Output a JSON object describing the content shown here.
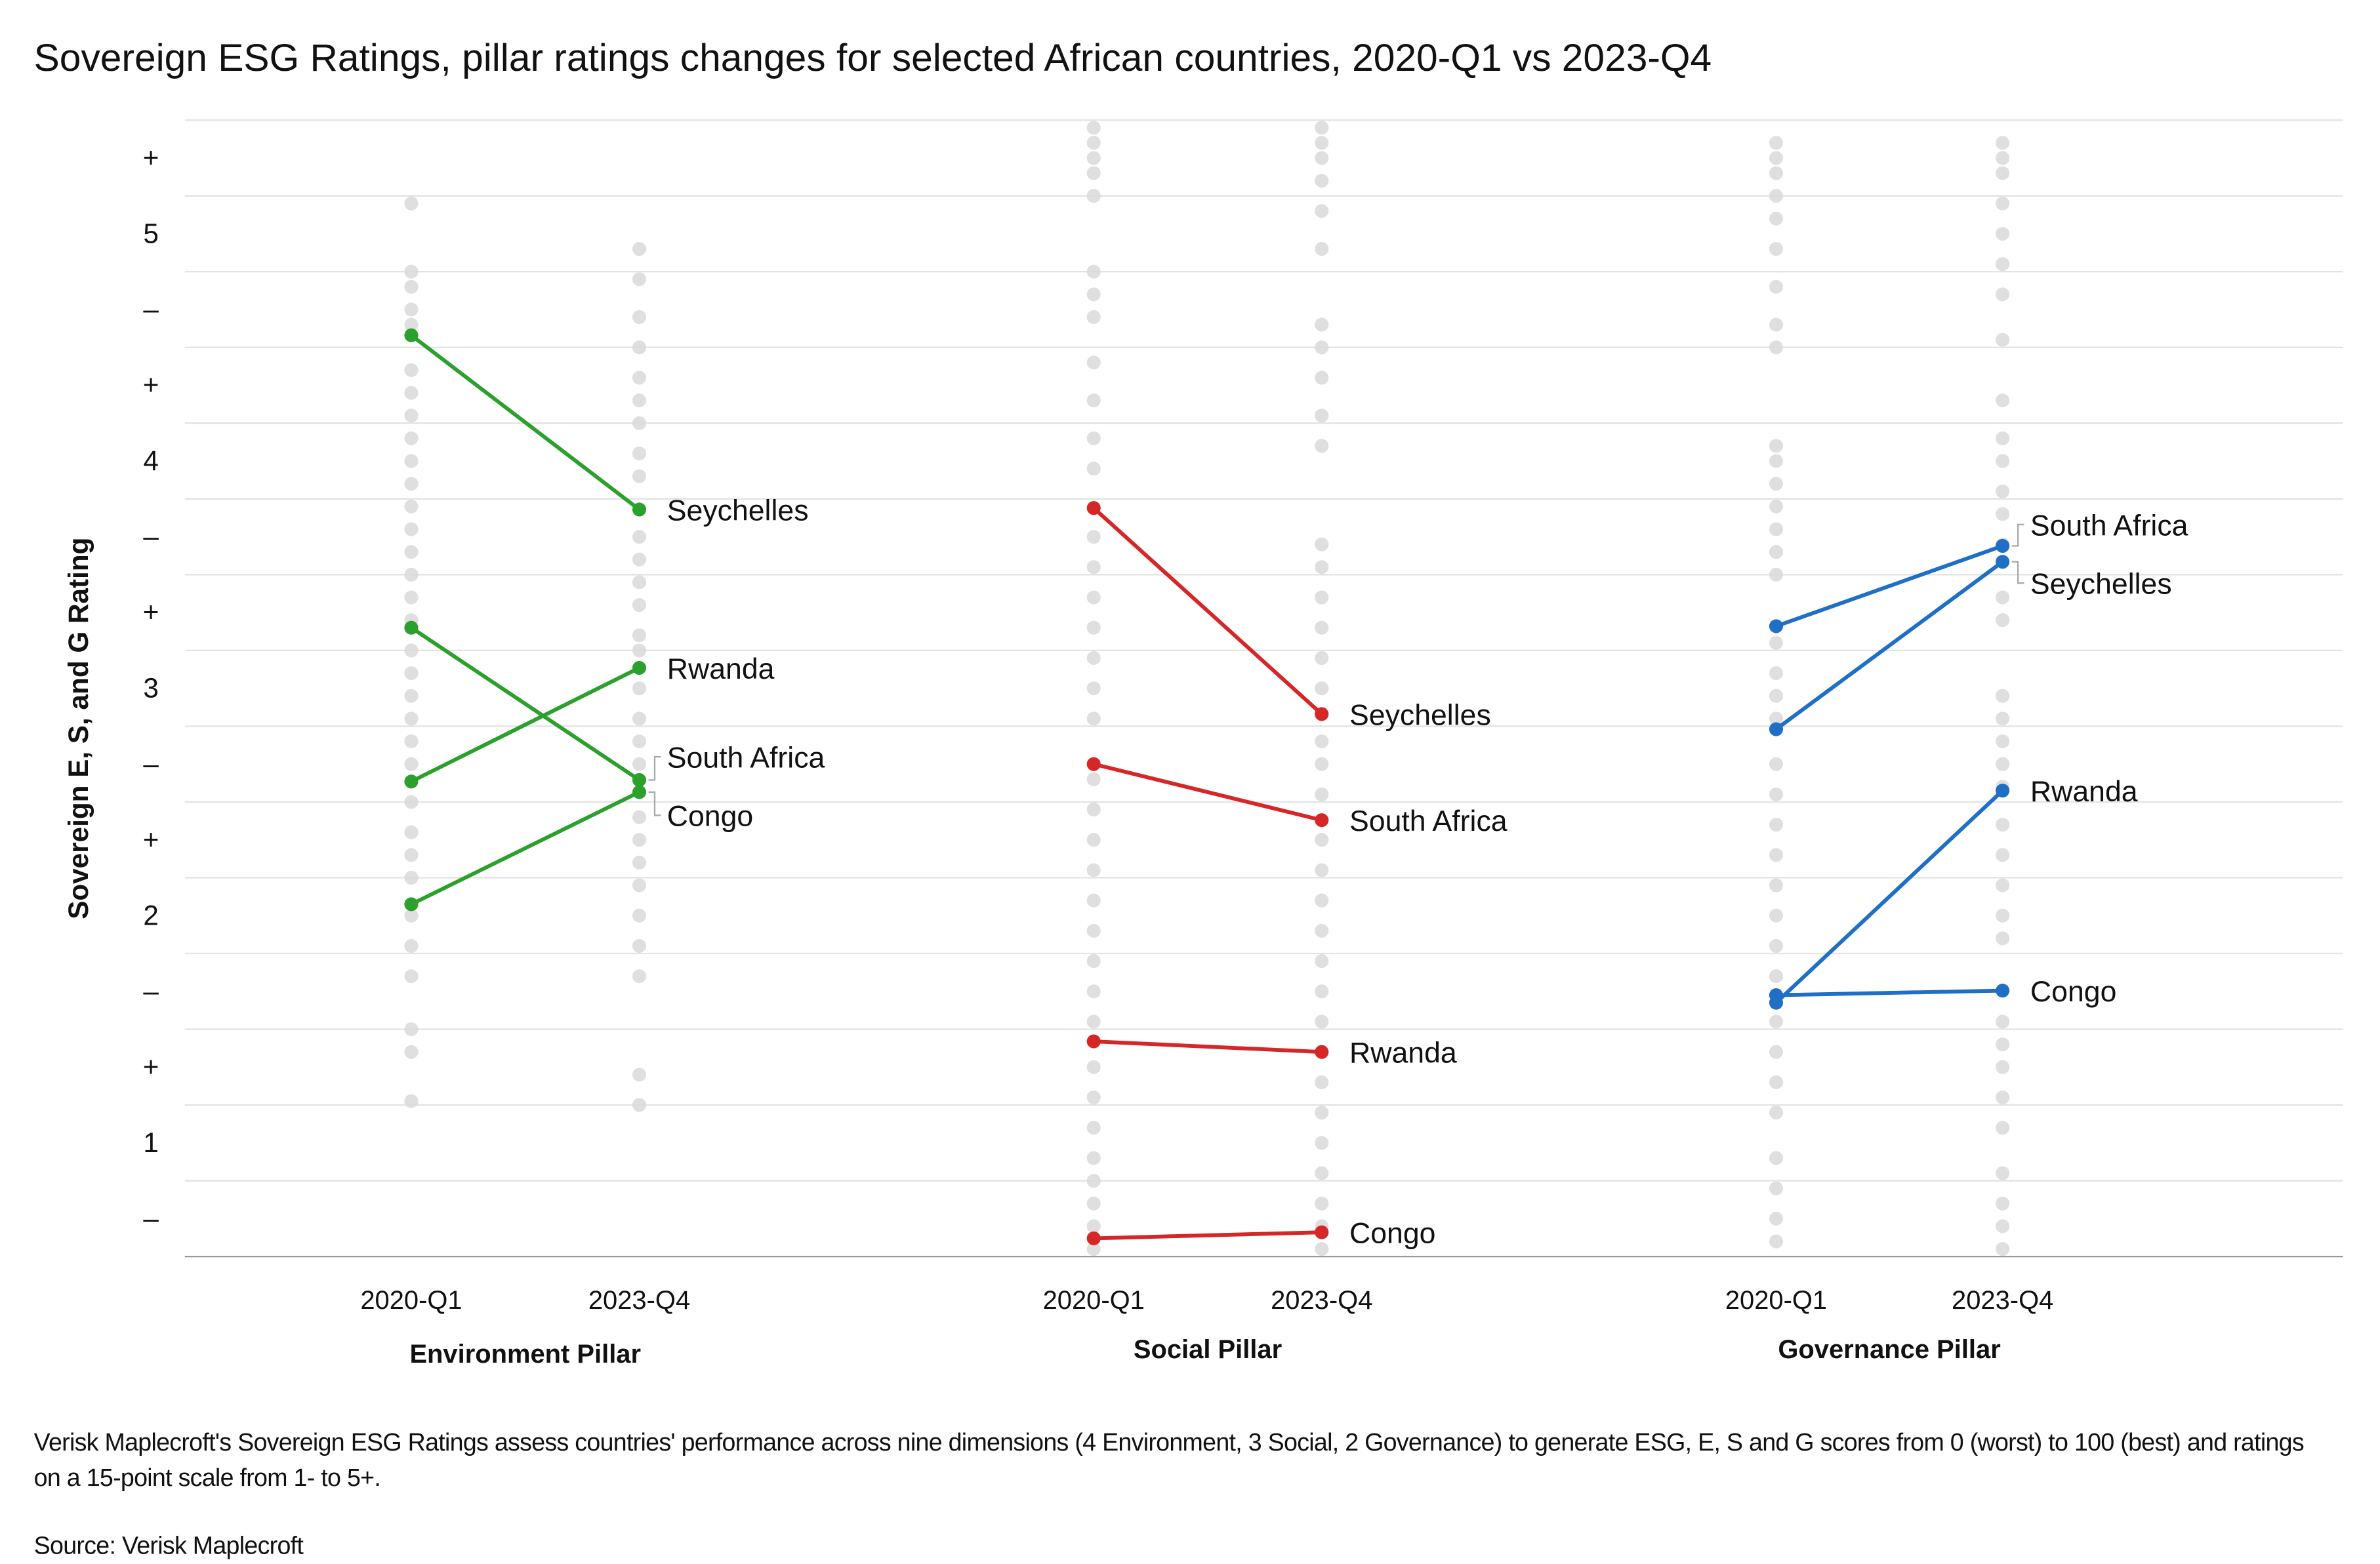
{
  "chart_data": {
    "type": "slope",
    "title": "Sovereign ESG Ratings, pillar ratings changes for selected African countries, 2020-Q1 vs 2023-Q4",
    "y_label": "Sovereign E, S, and G Rating",
    "ylim": [
      0.5,
      15.5
    ],
    "yticks": [
      {
        "value": 15,
        "label": "+"
      },
      {
        "value": 14,
        "label": "5"
      },
      {
        "value": 13,
        "label": "–"
      },
      {
        "value": 12,
        "label": "+"
      },
      {
        "value": 11,
        "label": "4"
      },
      {
        "value": 10,
        "label": "–"
      },
      {
        "value": 9,
        "label": "+"
      },
      {
        "value": 8,
        "label": "3"
      },
      {
        "value": 7,
        "label": "–"
      },
      {
        "value": 6,
        "label": "+"
      },
      {
        "value": 5,
        "label": "2"
      },
      {
        "value": 4,
        "label": "–"
      },
      {
        "value": 3,
        "label": "+"
      },
      {
        "value": 2,
        "label": "1"
      },
      {
        "value": 1,
        "label": "–"
      }
    ],
    "grid": true,
    "grid_lines": [
      0.5,
      1.5,
      2.5,
      3.5,
      4.5,
      5.5,
      6.5,
      7.5,
      8.5,
      9.5,
      10.5,
      11.5,
      12.5,
      13.5,
      14.5,
      15.5
    ],
    "background_color": "#d9d9d9",
    "panels": [
      {
        "title": "Environment Pillar",
        "categories": [
          "2020-Q1",
          "2023-Q4"
        ],
        "series": [
          {
            "name": "Seychelles",
            "color": "#2ca02c",
            "values": [
              12.66,
              10.36
            ]
          },
          {
            "name": "Rwanda",
            "color": "#2ca02c",
            "values": [
              6.77,
              8.27
            ]
          },
          {
            "name": "South Africa",
            "color": "#2ca02c",
            "values": [
              8.8,
              6.79
            ]
          },
          {
            "name": "Congo",
            "color": "#2ca02c",
            "values": [
              5.15,
              6.63
            ]
          }
        ],
        "background": [
          [
            14.4,
            13.5,
            13.3,
            13.0,
            12.8,
            12.2,
            11.9,
            11.6,
            11.3,
            11.0,
            10.7,
            10.4,
            10.1,
            9.8,
            9.5,
            9.2,
            8.9,
            8.5,
            8.2,
            7.9,
            7.6,
            7.3,
            7.0,
            6.5,
            6.1,
            5.8,
            5.5,
            5.0,
            4.6,
            4.2,
            3.5,
            3.2,
            2.55
          ],
          [
            13.8,
            13.4,
            12.9,
            12.5,
            12.1,
            11.8,
            11.5,
            11.1,
            10.8,
            10.0,
            9.7,
            9.4,
            9.1,
            8.7,
            8.5,
            8.0,
            7.6,
            7.3,
            7.0,
            6.3,
            6.0,
            5.7,
            5.4,
            5.0,
            4.6,
            4.2,
            2.9,
            2.5
          ]
        ]
      },
      {
        "title": "Social Pillar",
        "categories": [
          "2020-Q1",
          "2023-Q4"
        ],
        "series": [
          {
            "name": "Seychelles",
            "color": "#d62728",
            "values": [
              10.38,
              7.66
            ]
          },
          {
            "name": "South Africa",
            "color": "#d62728",
            "values": [
              7.0,
              6.26
            ]
          },
          {
            "name": "Rwanda",
            "color": "#d62728",
            "values": [
              3.34,
              3.2
            ]
          },
          {
            "name": "Congo",
            "color": "#d62728",
            "values": [
              0.74,
              0.82
            ]
          }
        ],
        "background": [
          [
            15.4,
            15.2,
            15.0,
            14.8,
            14.5,
            13.5,
            13.2,
            12.9,
            12.3,
            11.8,
            11.3,
            10.9,
            10.0,
            9.6,
            9.2,
            8.8,
            8.4,
            8.0,
            7.6,
            6.8,
            6.4,
            6.0,
            5.6,
            5.2,
            4.8,
            4.4,
            4.0,
            3.6,
            3.0,
            2.6,
            2.2,
            1.8,
            1.5,
            1.2,
            0.9,
            0.6
          ],
          [
            15.4,
            15.2,
            15.0,
            14.7,
            14.3,
            13.8,
            12.8,
            12.5,
            12.1,
            11.6,
            11.2,
            9.9,
            9.6,
            9.2,
            8.8,
            8.4,
            8.0,
            7.3,
            7.0,
            6.6,
            6.0,
            5.6,
            5.2,
            4.8,
            4.4,
            4.0,
            3.6,
            2.8,
            2.4,
            2.0,
            1.6,
            1.2,
            0.9,
            0.6
          ]
        ]
      },
      {
        "title": "Governance Pillar",
        "categories": [
          "2020-Q1",
          "2023-Q4"
        ],
        "series": [
          {
            "name": "South Africa",
            "color": "#1f6fc6",
            "values": [
              8.82,
              9.88
            ]
          },
          {
            "name": "Seychelles",
            "color": "#1f6fc6",
            "values": [
              7.46,
              9.67
            ]
          },
          {
            "name": "Rwanda",
            "color": "#1f6fc6",
            "values": [
              3.85,
              6.65
            ]
          },
          {
            "name": "Congo",
            "color": "#1f6fc6",
            "values": [
              3.95,
              4.01
            ]
          }
        ],
        "background": [
          [
            15.2,
            15.0,
            14.8,
            14.5,
            14.2,
            13.8,
            13.3,
            12.8,
            12.5,
            11.2,
            11.0,
            10.7,
            10.4,
            10.1,
            9.8,
            9.5,
            8.6,
            8.2,
            7.9,
            7.6,
            7.0,
            6.6,
            6.2,
            5.8,
            5.4,
            5.0,
            4.6,
            4.2,
            3.6,
            3.2,
            2.8,
            2.4,
            1.8,
            1.4,
            1.0,
            0.7
          ],
          [
            15.2,
            15.0,
            14.8,
            14.4,
            14.0,
            13.6,
            13.2,
            12.6,
            11.8,
            11.3,
            11.0,
            10.6,
            10.3,
            9.9,
            9.2,
            8.9,
            7.9,
            7.6,
            7.3,
            7.0,
            6.7,
            6.2,
            5.8,
            5.4,
            5.0,
            4.7,
            3.6,
            3.3,
            3.0,
            2.6,
            2.2,
            1.6,
            1.2,
            0.9,
            0.6
          ]
        ]
      }
    ],
    "note": "Verisk Maplecroft's Sovereign ESG Ratings assess countries' performance across nine dimensions (4 Environment, 3 Social, 2 Governance) to generate ESG, E, S and G scores from 0 (worst) to 100 (best) and ratings on a 15-point scale from 1- to 5+.",
    "source": "Source: Verisk Maplecroft"
  }
}
